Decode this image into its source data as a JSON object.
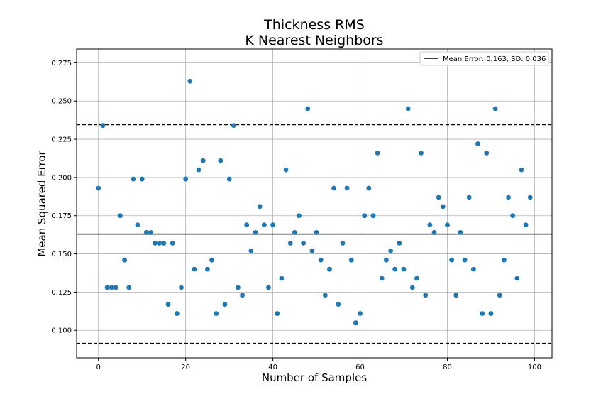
{
  "chart_data": {
    "type": "scatter",
    "title": [
      "Thickness RMS",
      "K Nearest Neighbors"
    ],
    "xlabel": "Number of Samples",
    "ylabel": "Mean Squared Error",
    "xlim": [
      -5,
      104
    ],
    "ylim": [
      0.082,
      0.284
    ],
    "xticks": [
      0,
      20,
      40,
      60,
      80,
      100
    ],
    "yticks": [
      0.1,
      0.125,
      0.15,
      0.175,
      0.2,
      0.225,
      0.25,
      0.275
    ],
    "ytick_labels": [
      "0.100",
      "0.125",
      "0.150",
      "0.175",
      "0.200",
      "0.225",
      "0.250",
      "0.275"
    ],
    "grid": true,
    "legend": {
      "placement": "top-right",
      "entries": [
        "Mean Error: 0.163, SD: 0.036"
      ]
    },
    "mean": 0.163,
    "sd": 0.036,
    "upper_band": 0.2345,
    "lower_band": 0.0915,
    "marker_color": "#1f77b4",
    "x": [
      0,
      1,
      2,
      3,
      4,
      5,
      6,
      7,
      8,
      9,
      10,
      11,
      12,
      13,
      14,
      15,
      16,
      17,
      18,
      19,
      20,
      21,
      22,
      23,
      24,
      25,
      26,
      27,
      28,
      29,
      30,
      31,
      32,
      33,
      34,
      35,
      36,
      37,
      38,
      39,
      40,
      41,
      42,
      43,
      44,
      45,
      46,
      47,
      48,
      49,
      50,
      51,
      52,
      53,
      54,
      55,
      56,
      57,
      58,
      59,
      60,
      61,
      62,
      63,
      64,
      65,
      66,
      67,
      68,
      69,
      70,
      71,
      72,
      73,
      74,
      75,
      76,
      77,
      78,
      79,
      80,
      81,
      82,
      83,
      84,
      85,
      86,
      87,
      88,
      89,
      90,
      91,
      92,
      93,
      94,
      95,
      96,
      97,
      98,
      99
    ],
    "y": [
      0.193,
      0.234,
      0.128,
      0.128,
      0.128,
      0.175,
      0.146,
      0.128,
      0.199,
      0.169,
      0.199,
      0.164,
      0.164,
      0.157,
      0.157,
      0.157,
      0.117,
      0.157,
      0.111,
      0.128,
      0.199,
      0.263,
      0.14,
      0.205,
      0.211,
      0.14,
      0.146,
      0.111,
      0.211,
      0.117,
      0.199,
      0.234,
      0.128,
      0.123,
      0.169,
      0.152,
      0.164,
      0.181,
      0.169,
      0.128,
      0.169,
      0.111,
      0.134,
      0.205,
      0.157,
      0.164,
      0.175,
      0.157,
      0.245,
      0.152,
      0.164,
      0.146,
      0.123,
      0.14,
      0.193,
      0.117,
      0.157,
      0.193,
      0.146,
      0.105,
      0.111,
      0.175,
      0.193,
      0.175,
      0.216,
      0.134,
      0.146,
      0.152,
      0.14,
      0.157,
      0.14,
      0.245,
      0.128,
      0.134,
      0.216,
      0.123,
      0.169,
      0.164,
      0.187,
      0.181,
      0.169,
      0.146,
      0.123,
      0.164,
      0.146,
      0.187,
      0.14,
      0.222,
      0.111,
      0.216,
      0.111,
      0.245,
      0.123,
      0.146,
      0.187,
      0.175,
      0.134,
      0.205,
      0.169,
      0.187
    ]
  }
}
